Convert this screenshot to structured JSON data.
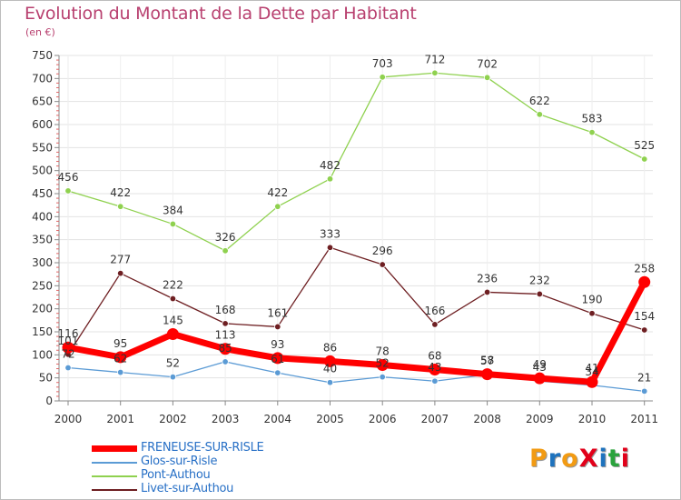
{
  "title": "Evolution du Montant de la Dette par Habitant",
  "subtitle": "(en €)",
  "logo": {
    "text": "ProXiti",
    "colors": [
      "#f29b13",
      "#1e73be",
      "#f29b13",
      "#e2001a",
      "#1e73be",
      "#2aa33c",
      "#e2001a"
    ]
  },
  "chart_data": {
    "type": "line",
    "title": "Evolution du Montant de la Dette par Habitant",
    "subtitle": "(en €)",
    "xlabel": "",
    "ylabel": "",
    "x": [
      "2000",
      "2001",
      "2002",
      "2003",
      "2004",
      "2005",
      "2006",
      "2007",
      "2008",
      "2009",
      "2010",
      "2011"
    ],
    "ylim": [
      0,
      750
    ],
    "yticks": [
      0,
      50,
      100,
      150,
      200,
      250,
      300,
      350,
      400,
      450,
      500,
      550,
      600,
      650,
      700,
      750
    ],
    "grid": true,
    "legend_position": "bottom-left",
    "series": [
      {
        "name": "FRENEUSE-SUR-RISLE",
        "color": "#ff0000",
        "values": [
          116,
          95,
          145,
          113,
          93,
          86,
          78,
          68,
          58,
          49,
          41,
          258
        ]
      },
      {
        "name": "Glos-sur-Risle",
        "color": "#5b9bd5",
        "values": [
          72,
          62,
          52,
          85,
          61,
          40,
          52,
          43,
          57,
          43,
          34,
          21
        ]
      },
      {
        "name": "Pont-Authou",
        "color": "#8fd14f",
        "values": [
          456,
          422,
          384,
          326,
          422,
          482,
          703,
          712,
          702,
          622,
          583,
          525
        ]
      },
      {
        "name": "Livet-sur-Authou",
        "color": "#6e1f22",
        "values": [
          101,
          277,
          222,
          168,
          161,
          333,
          296,
          166,
          236,
          232,
          190,
          154
        ]
      }
    ]
  }
}
